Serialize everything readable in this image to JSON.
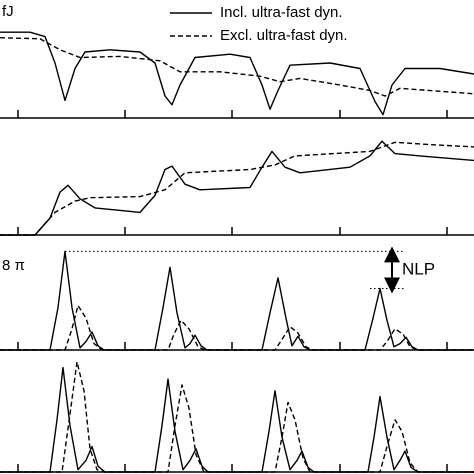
{
  "chart_data": [
    {
      "type": "line",
      "y_label": "fJ",
      "xlim": [
        0,
        474
      ],
      "ylim": [
        0,
        1
      ],
      "xticks": [
        18,
        125,
        232,
        340,
        447
      ],
      "series": [
        {
          "name": "Incl. ultra-fast dyn.",
          "color": "#000000",
          "dashed": false,
          "x": [
            0,
            30,
            45,
            55,
            65,
            75,
            85,
            110,
            140,
            155,
            165,
            172,
            180,
            195,
            230,
            250,
            262,
            270,
            278,
            290,
            330,
            360,
            375,
            383,
            392,
            405,
            440,
            474
          ],
          "values": [
            0.78,
            0.78,
            0.74,
            0.5,
            0.16,
            0.45,
            0.6,
            0.62,
            0.6,
            0.5,
            0.2,
            0.12,
            0.3,
            0.55,
            0.58,
            0.55,
            0.3,
            0.08,
            0.25,
            0.48,
            0.5,
            0.45,
            0.15,
            0.03,
            0.3,
            0.45,
            0.45,
            0.4
          ]
        },
        {
          "name": "Excl. ultra-fast dyn.",
          "color": "#000000",
          "dashed": true,
          "x": [
            0,
            40,
            60,
            80,
            120,
            160,
            180,
            220,
            260,
            280,
            300,
            340,
            370,
            385,
            400,
            474
          ],
          "values": [
            0.73,
            0.72,
            0.62,
            0.55,
            0.56,
            0.52,
            0.42,
            0.42,
            0.38,
            0.33,
            0.36,
            0.3,
            0.25,
            0.2,
            0.27,
            0.22
          ]
        }
      ]
    },
    {
      "type": "line",
      "xlim": [
        0,
        474
      ],
      "ylim": [
        0,
        1
      ],
      "xticks": [
        18,
        125,
        232,
        340,
        447
      ],
      "series": [
        {
          "color": "#000000",
          "dashed": false,
          "x": [
            0,
            35,
            50,
            60,
            68,
            80,
            95,
            140,
            155,
            165,
            172,
            185,
            200,
            250,
            262,
            272,
            285,
            300,
            350,
            370,
            382,
            395,
            420,
            474
          ],
          "values": [
            0,
            0,
            0.15,
            0.38,
            0.44,
            0.32,
            0.24,
            0.2,
            0.35,
            0.58,
            0.61,
            0.45,
            0.4,
            0.42,
            0.6,
            0.74,
            0.6,
            0.55,
            0.6,
            0.7,
            0.83,
            0.72,
            0.7,
            0.66
          ]
        },
        {
          "color": "#000000",
          "dashed": true,
          "x": [
            0,
            35,
            55,
            75,
            90,
            140,
            165,
            185,
            250,
            275,
            295,
            370,
            395,
            430,
            474
          ],
          "values": [
            0,
            0,
            0.2,
            0.3,
            0.33,
            0.34,
            0.4,
            0.55,
            0.58,
            0.62,
            0.7,
            0.74,
            0.82,
            0.8,
            0.78
          ]
        }
      ]
    },
    {
      "type": "line",
      "y_label": "8 π",
      "annotation": "NLP",
      "xlim": [
        0,
        474
      ],
      "ylim": [
        0,
        1
      ],
      "xticks": [
        18,
        125,
        232,
        340,
        447
      ],
      "series": [
        {
          "color": "#000000",
          "dashed": false,
          "x": [
            0,
            50,
            58,
            65,
            72,
            80,
            86,
            92,
            98,
            104,
            155,
            163,
            170,
            177,
            185,
            190,
            195,
            201,
            207,
            262,
            270,
            278,
            286,
            292,
            298,
            304,
            310,
            365,
            373,
            380,
            387,
            394,
            400,
            406,
            412,
            418,
            474
          ],
          "values": [
            0,
            0,
            0.4,
            0.93,
            0.4,
            0.02,
            0.08,
            0.17,
            0.04,
            0,
            0,
            0.4,
            0.78,
            0.35,
            0.02,
            0.06,
            0.14,
            0.04,
            0,
            0,
            0.35,
            0.68,
            0.3,
            0.04,
            0.13,
            0.03,
            0,
            0,
            0.3,
            0.58,
            0.28,
            0.03,
            0.06,
            0.12,
            0.03,
            0,
            0
          ]
        },
        {
          "color": "#000000",
          "dashed": true,
          "x": [
            0,
            65,
            72,
            78,
            86,
            94,
            102,
            168,
            174,
            181,
            189,
            198,
            205,
            275,
            282,
            290,
            298,
            306,
            312,
            380,
            387,
            395,
            403,
            410,
            418,
            474
          ],
          "values": [
            0,
            0,
            0.2,
            0.42,
            0.3,
            0.06,
            0,
            0,
            0.15,
            0.28,
            0.2,
            0.03,
            0,
            0,
            0.1,
            0.22,
            0.16,
            0.03,
            0,
            0,
            0.08,
            0.2,
            0.15,
            0.03,
            0,
            0
          ]
        }
      ]
    },
    {
      "type": "line",
      "xlim": [
        0,
        474
      ],
      "ylim": [
        0,
        1
      ],
      "xticks": [
        18,
        125,
        232,
        340,
        447
      ],
      "series": [
        {
          "color": "#000000",
          "dashed": false,
          "x": [
            0,
            50,
            57,
            63,
            70,
            78,
            86,
            92,
            98,
            105,
            155,
            162,
            168,
            175,
            183,
            190,
            196,
            202,
            208,
            262,
            269,
            275,
            282,
            290,
            297,
            302,
            308,
            314,
            368,
            374,
            380,
            387,
            394,
            400,
            405,
            411,
            418,
            474
          ],
          "values": [
            0,
            0,
            0.45,
            0.9,
            0.4,
            0.02,
            0.1,
            0.22,
            0.05,
            0,
            0,
            0.4,
            0.8,
            0.35,
            0.02,
            0.1,
            0.2,
            0.05,
            0,
            0,
            0.35,
            0.7,
            0.3,
            0.02,
            0.1,
            0.18,
            0.04,
            0,
            0,
            0.3,
            0.65,
            0.3,
            0.02,
            0.1,
            0.18,
            0.04,
            0,
            0
          ]
        },
        {
          "color": "#000000",
          "dashed": true,
          "x": [
            0,
            62,
            70,
            77,
            84,
            90,
            97,
            104,
            168,
            175,
            182,
            189,
            196,
            204,
            275,
            282,
            288,
            295,
            303,
            310,
            380,
            387,
            395,
            402,
            410,
            418,
            474
          ],
          "values": [
            0,
            0,
            0.5,
            0.95,
            0.7,
            0.2,
            0.02,
            0,
            0,
            0.4,
            0.75,
            0.55,
            0.15,
            0,
            0,
            0.3,
            0.6,
            0.45,
            0.12,
            0,
            0,
            0.22,
            0.45,
            0.35,
            0.08,
            0,
            0
          ]
        }
      ]
    }
  ]
}
